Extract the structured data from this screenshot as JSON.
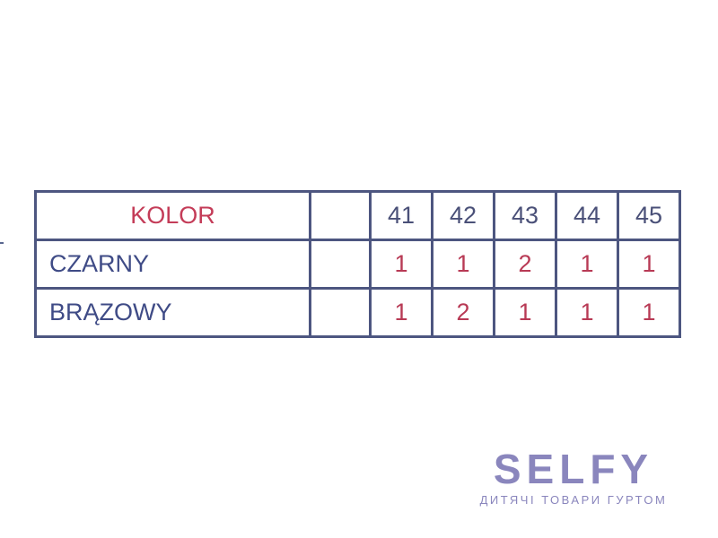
{
  "table": {
    "header": {
      "label": "KOLOR",
      "extra": "",
      "sizes": [
        "41",
        "42",
        "43",
        "44",
        "45"
      ]
    },
    "rows": [
      {
        "label": "CZARNY",
        "extra": "",
        "values": [
          "1",
          "1",
          "2",
          "1",
          "1"
        ]
      },
      {
        "label": "BRĄZOWY",
        "extra": "",
        "values": [
          "1",
          "2",
          "1",
          "1",
          "1"
        ]
      }
    ]
  },
  "logo": {
    "brand": "SELFY",
    "tagline": "ДИТЯЧІ ТОВАРИ ГУРТОМ"
  },
  "colors": {
    "border": "#4d5680",
    "header_red": "#c43c58",
    "label_navy": "#3f4b86",
    "logo": "#8a86bd"
  }
}
